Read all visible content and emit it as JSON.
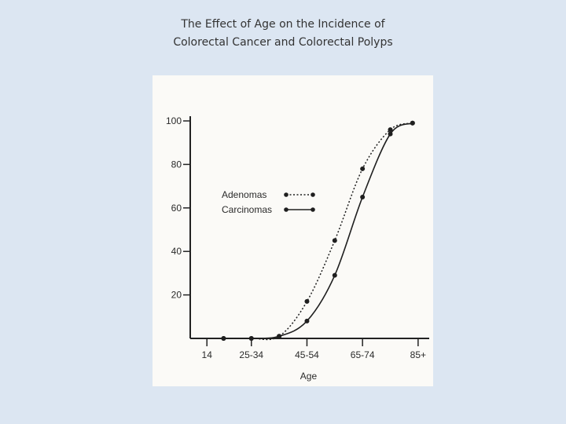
{
  "page": {
    "title_line1": "The Effect of Age on the Incidence of",
    "title_line2": "Colorectal Cancer and Colorectal Polyps"
  },
  "chart_data": {
    "type": "line",
    "xlabel": "Age",
    "ylabel": "",
    "x_tick_labels": [
      "14",
      "25-34",
      "45-54",
      "65-74",
      "85+"
    ],
    "y_tick_labels": [
      "20",
      "40",
      "60",
      "80",
      "100"
    ],
    "ylim": [
      0,
      100
    ],
    "grid": false,
    "legend_position": "center-left",
    "series": [
      {
        "name": "Adenomas",
        "style": "dotted",
        "color": "#1f1f1f",
        "points": [
          {
            "x": 20,
            "y": 0
          },
          {
            "x": 30,
            "y": 0
          },
          {
            "x": 40,
            "y": 1
          },
          {
            "x": 50,
            "y": 17
          },
          {
            "x": 60,
            "y": 45
          },
          {
            "x": 70,
            "y": 78
          },
          {
            "x": 80,
            "y": 96
          },
          {
            "x": 88,
            "y": 99
          }
        ]
      },
      {
        "name": "Carcinomas",
        "style": "solid",
        "color": "#1f1f1f",
        "points": [
          {
            "x": 20,
            "y": 0
          },
          {
            "x": 30,
            "y": 0
          },
          {
            "x": 40,
            "y": 1
          },
          {
            "x": 50,
            "y": 8
          },
          {
            "x": 60,
            "y": 29
          },
          {
            "x": 70,
            "y": 65
          },
          {
            "x": 80,
            "y": 94
          },
          {
            "x": 88,
            "y": 99
          }
        ]
      }
    ]
  }
}
